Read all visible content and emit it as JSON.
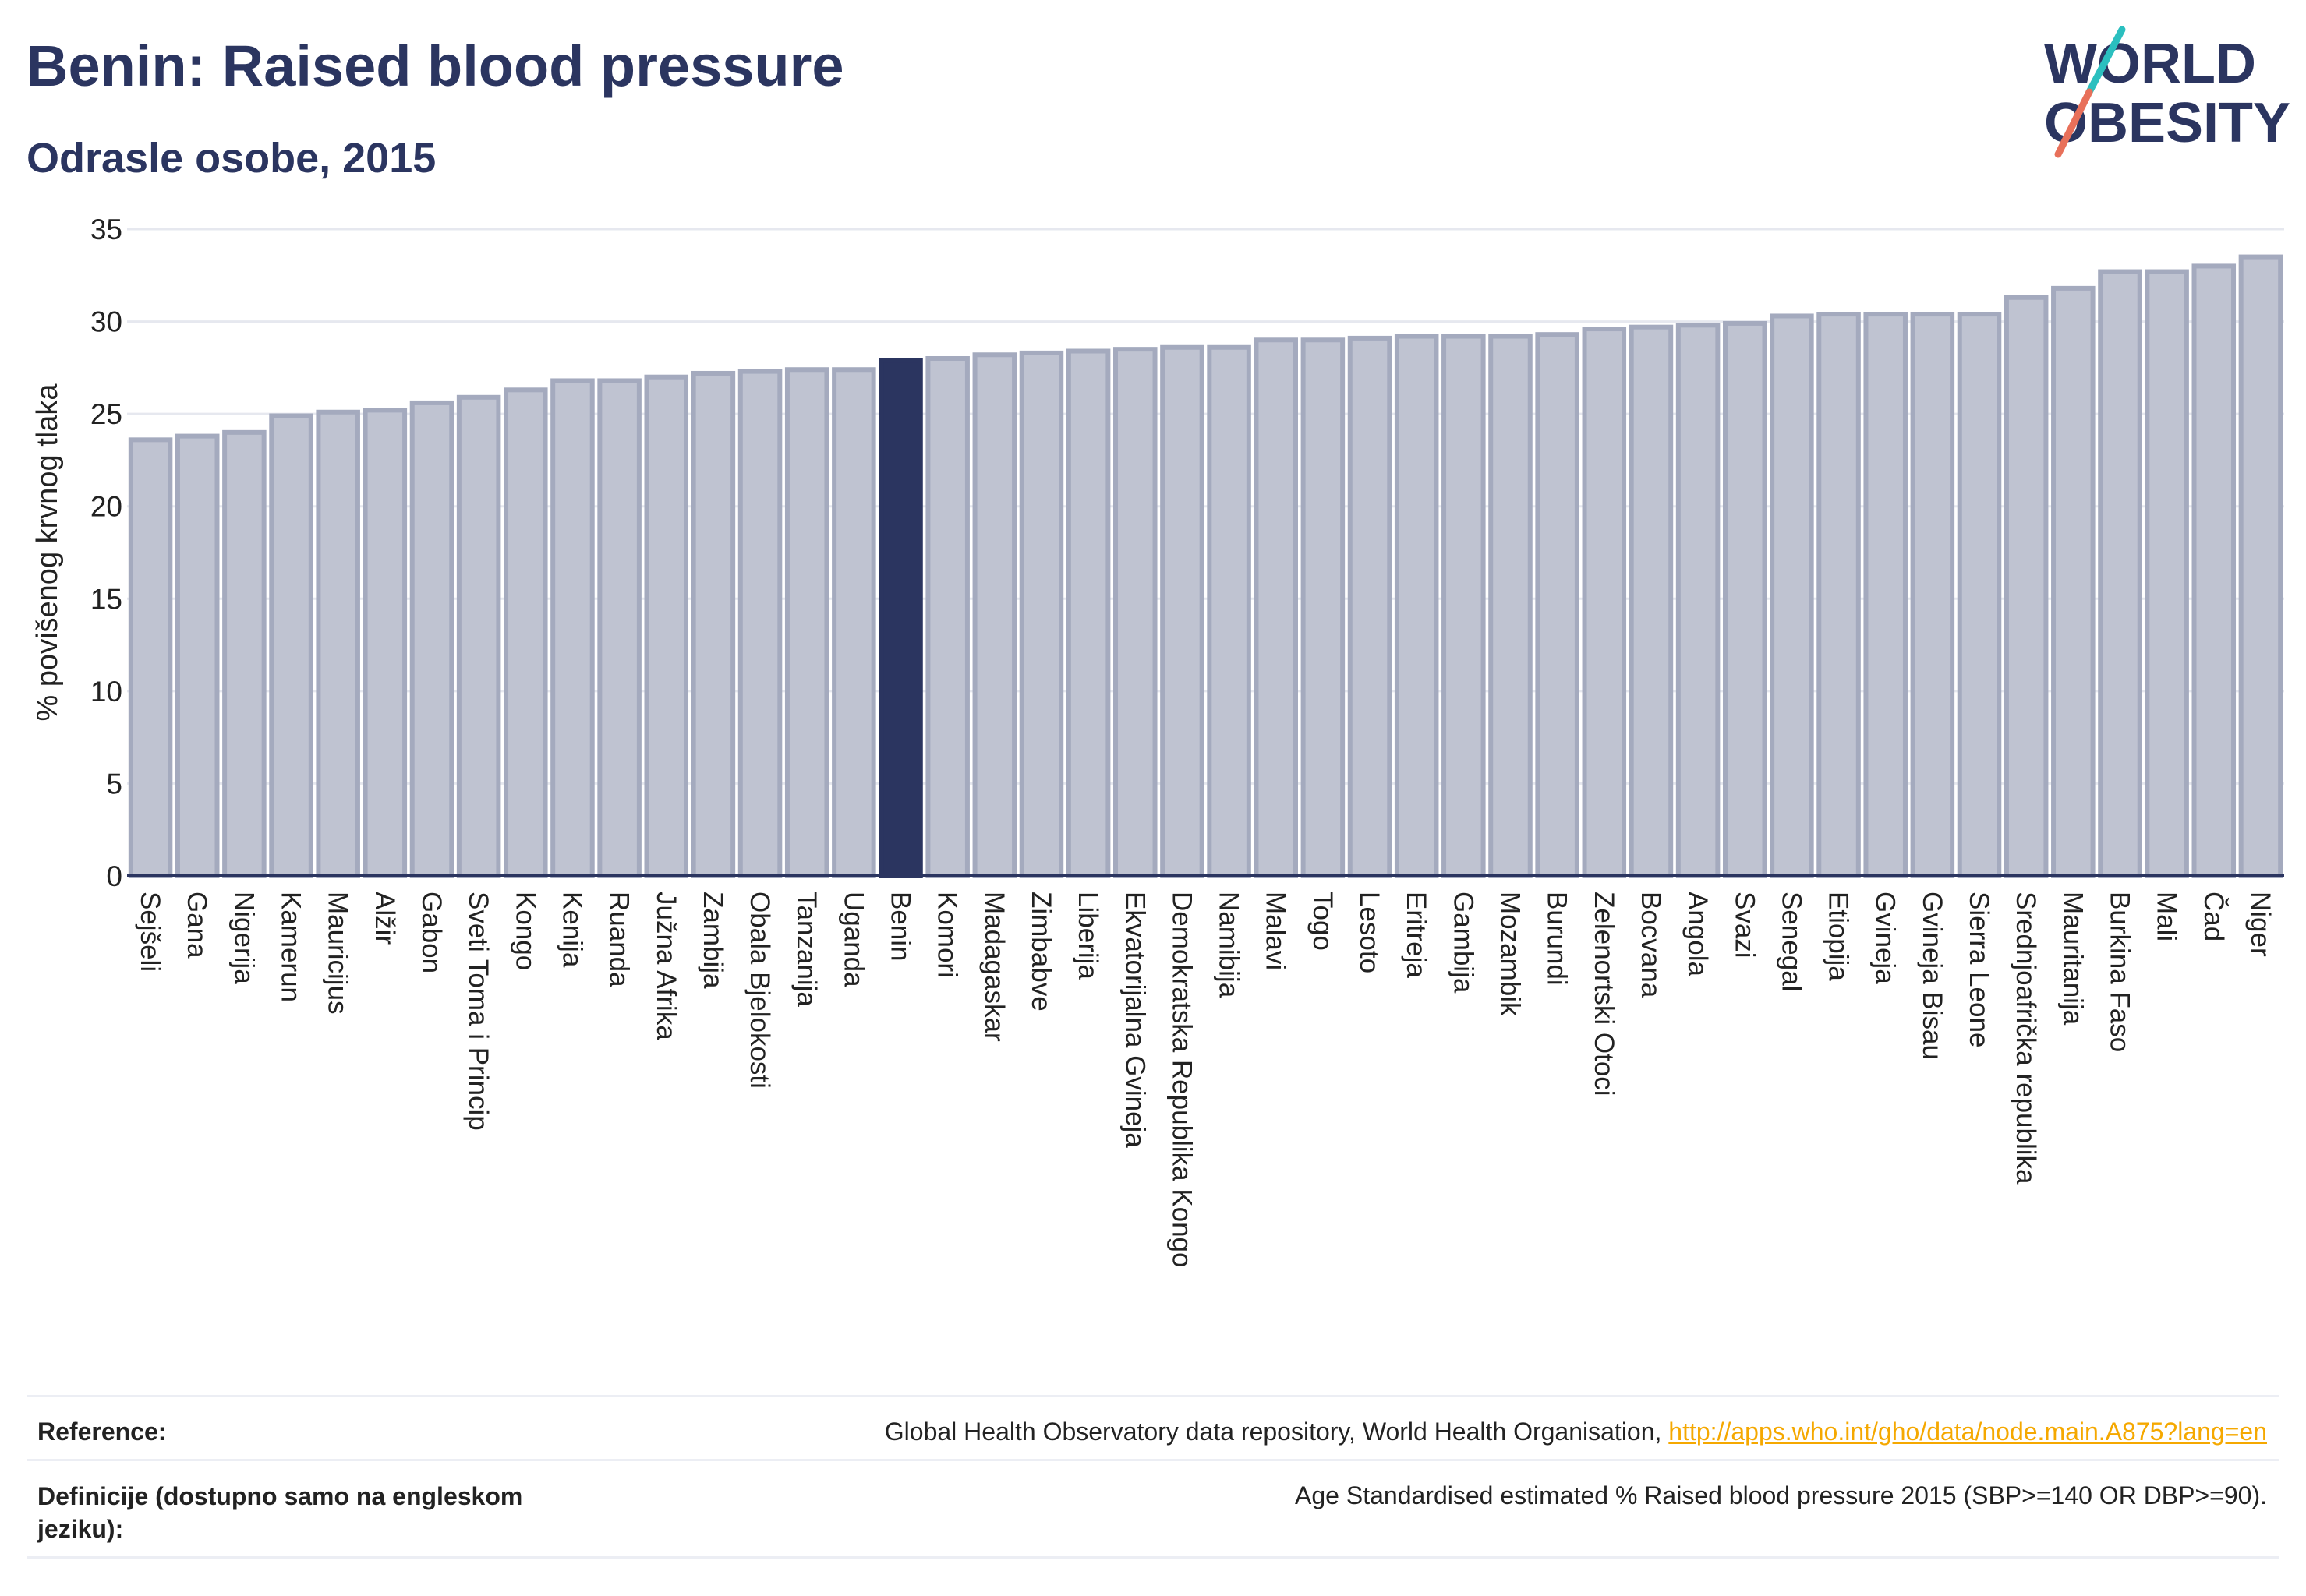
{
  "header": {
    "title": "Benin: Raised blood pressure",
    "subtitle": "Odrasle osobe, 2015"
  },
  "logo": {
    "line1": "WORLD",
    "line2": "OBESITY",
    "colors": {
      "text": "#2b3560",
      "slash_teal": "#2bbfbf",
      "slash_coral": "#e8705a"
    }
  },
  "chart_data": {
    "type": "bar",
    "ylabel": "% povišenog krvnog tlaka",
    "xlabel": "",
    "ylim": [
      0,
      35
    ],
    "yticks": [
      0,
      5,
      10,
      15,
      20,
      25,
      30,
      35
    ],
    "grid": true,
    "highlight": "Benin",
    "colors": {
      "bar": "#bfc3d1",
      "bar_border": "#a4aabe",
      "highlight": "#2b3560",
      "axis": "#2b3560",
      "grid": "#e6e8ef"
    },
    "categories": [
      "Sejšeli",
      "Gana",
      "Nigerija",
      "Kamerun",
      "Mauricijus",
      "Alžir",
      "Gabon",
      "Sveti Toma i Princip",
      "Kongo",
      "Kenija",
      "Ruanda",
      "Južna Afrika",
      "Zambija",
      "Obala Bjelokosti",
      "Tanzanija",
      "Uganda",
      "Benin",
      "Komori",
      "Madagaskar",
      "Zimbabve",
      "Liberija",
      "Ekvatorijalna Gvineja",
      "Demokratska Republika Kongo",
      "Namibija",
      "Malavi",
      "Togo",
      "Lesoto",
      "Eritreja",
      "Gambija",
      "Mozambik",
      "Burundi",
      "Zelenortski Otoci",
      "Bocvana",
      "Angola",
      "Svazi",
      "Senegal",
      "Etiopija",
      "Gvineja",
      "Gvineja Bisau",
      "Sierra Leone",
      "Srednjoafrička republika",
      "Mauritanija",
      "Burkina Faso",
      "Mali",
      "Čad",
      "Niger"
    ],
    "values": [
      23.6,
      23.8,
      24.0,
      24.9,
      25.1,
      25.2,
      25.6,
      25.9,
      26.3,
      26.8,
      26.8,
      27.0,
      27.2,
      27.3,
      27.4,
      27.4,
      27.9,
      28.0,
      28.2,
      28.3,
      28.4,
      28.5,
      28.6,
      28.6,
      29.0,
      29.0,
      29.1,
      29.2,
      29.2,
      29.2,
      29.3,
      29.6,
      29.7,
      29.8,
      29.9,
      30.3,
      30.4,
      30.4,
      30.4,
      30.4,
      31.3,
      31.8,
      32.7,
      32.7,
      33.0,
      33.5
    ]
  },
  "reference": {
    "label": "Reference:",
    "text": "Global Health Observatory data repository, World Health Organisation, ",
    "link": "http://apps.who.int/gho/data/node.main.A875?lang=en"
  },
  "definition": {
    "label_line1": "Definicije (dostupno samo na engleskom",
    "label_line2": "jeziku):",
    "text": "Age Standardised estimated % Raised blood pressure 2015 (SBP>=140 OR DBP>=90)."
  }
}
